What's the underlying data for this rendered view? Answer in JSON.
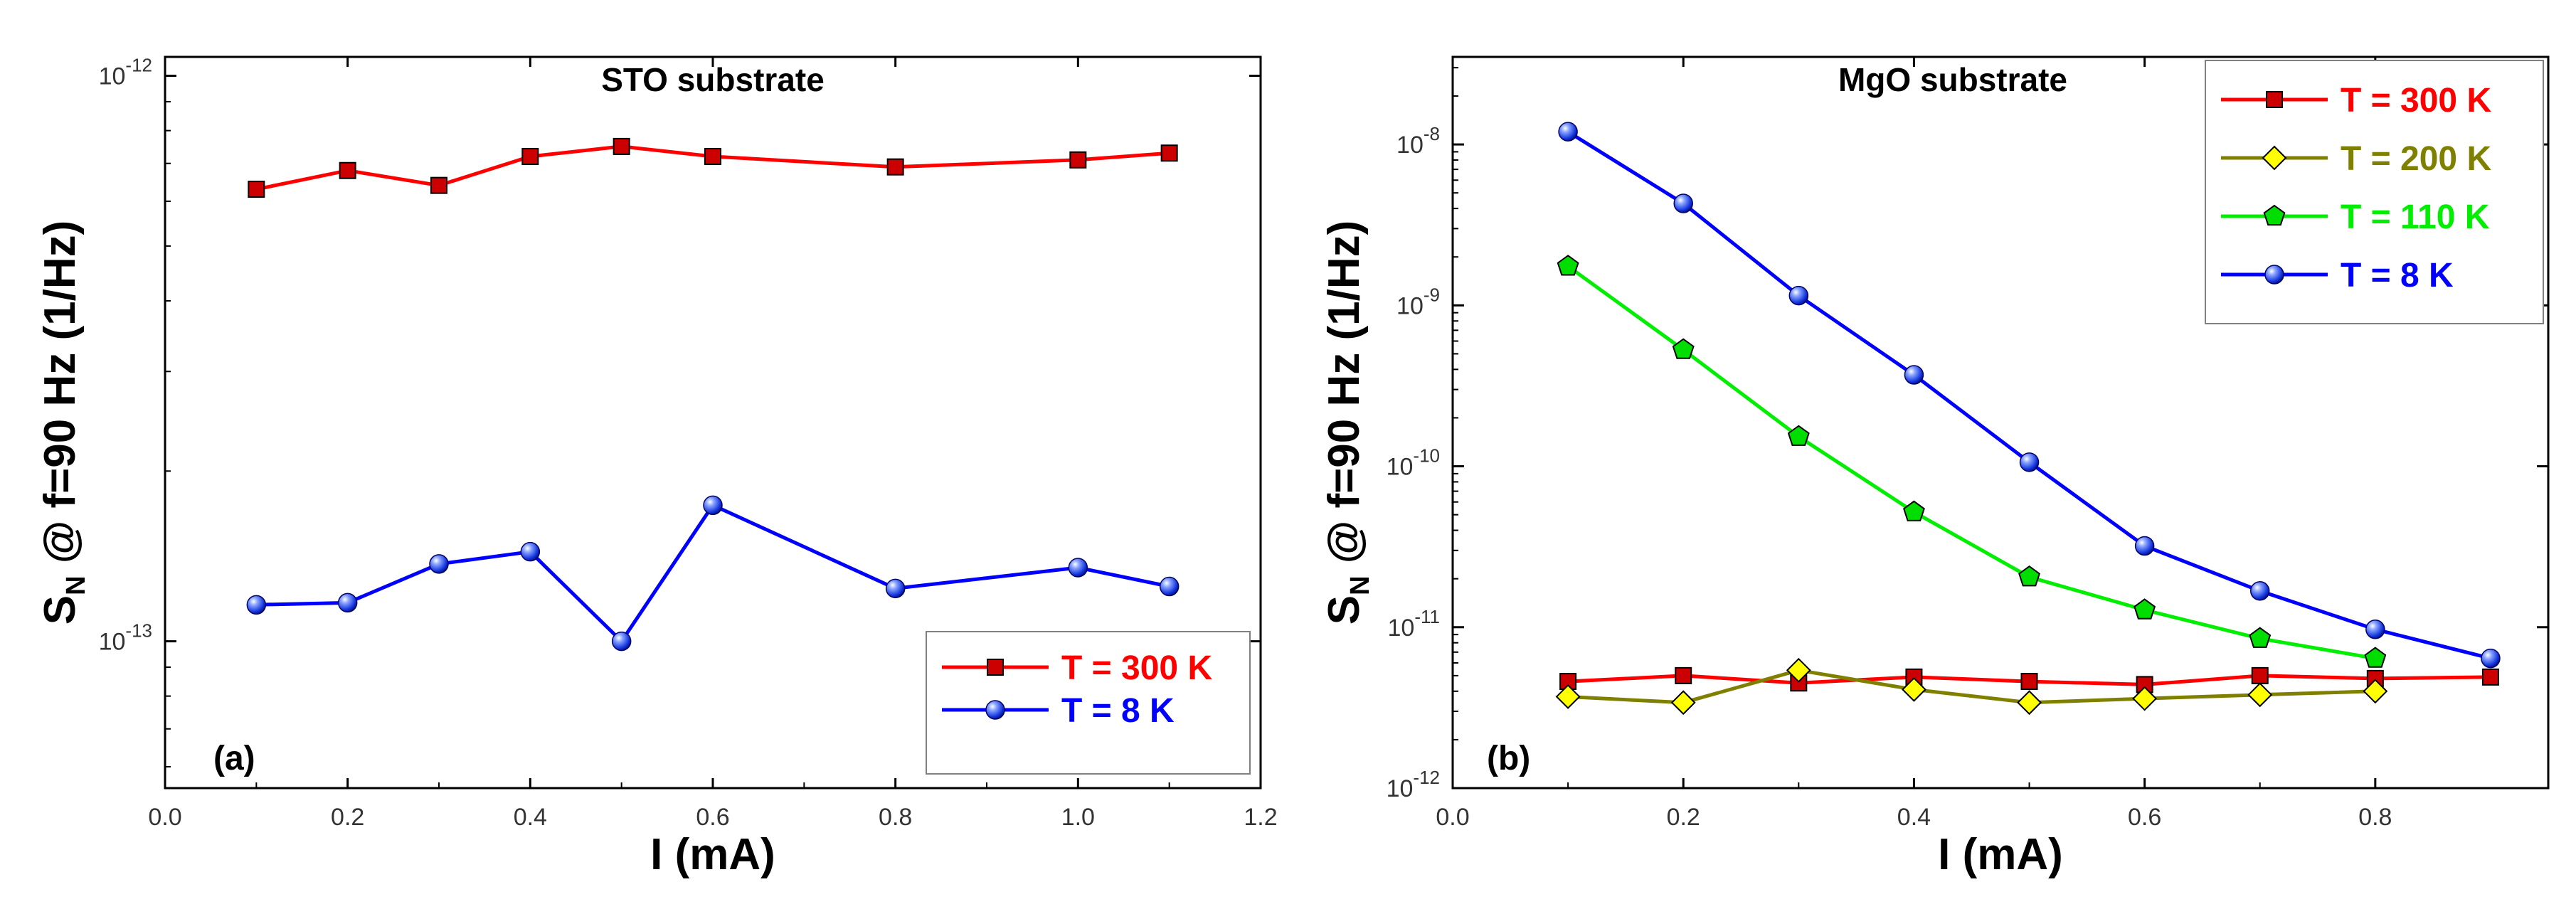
{
  "chart_data": [
    {
      "type": "line",
      "panel_label": "(a)",
      "title": "STO substrate",
      "xlabel": "I (mA)",
      "ylabel": "S_N @ f=90 Hz (1/Hz)",
      "ylabel_main": "S",
      "ylabel_sub": "N",
      "ylabel_rest": " @ f=90 Hz  (1/Hz)",
      "y_scale": "log",
      "xlim": [
        0.0,
        1.2
      ],
      "ylim": [
        5.5e-14,
        1.08e-12
      ],
      "x_ticks": [
        0.0,
        0.2,
        0.4,
        0.6,
        0.8,
        1.0,
        1.2
      ],
      "x_tick_labels": [
        "0.0",
        "0.2",
        "0.4",
        "0.6",
        "0.8",
        "1.0",
        "1.2"
      ],
      "y_ticks": [
        1e-13,
        1e-12
      ],
      "y_tick_labels": [
        {
          "base": "10",
          "exp": "-13"
        },
        {
          "base": "10",
          "exp": "-12"
        }
      ],
      "grid": false,
      "legend_position": "bottom-right",
      "series": [
        {
          "name": "T = 300 K",
          "color": "#ff0000",
          "marker": "square",
          "marker_fill": "#cc0000",
          "x": [
            0.1,
            0.2,
            0.3,
            0.4,
            0.5,
            0.6,
            0.8,
            1.0,
            1.1
          ],
          "y": [
            6.3e-13,
            6.8e-13,
            6.4e-13,
            7.2e-13,
            7.5e-13,
            7.2e-13,
            6.9e-13,
            7.1e-13,
            7.3e-13
          ]
        },
        {
          "name": "T = 8 K",
          "color": "#0000ff",
          "marker": "sphere",
          "marker_fill": "#2244ee",
          "x": [
            0.1,
            0.2,
            0.3,
            0.4,
            0.5,
            0.6,
            0.8,
            1.0,
            1.1
          ],
          "y": [
            1.16e-13,
            1.17e-13,
            1.37e-13,
            1.44e-13,
            1e-13,
            1.74e-13,
            1.24e-13,
            1.35e-13,
            1.25e-13
          ]
        }
      ]
    },
    {
      "type": "line",
      "panel_label": "(b)",
      "title": "MgO substrate",
      "xlabel": "I (mA)",
      "ylabel": "S_N @ f=90 Hz (1/Hz)",
      "ylabel_main": "S",
      "ylabel_sub": "N",
      "ylabel_rest": " @ f=90 Hz  (1/Hz)",
      "y_scale": "log",
      "xlim": [
        0.0,
        0.95
      ],
      "ylim": [
        1e-12,
        3.5e-08
      ],
      "x_ticks": [
        0.0,
        0.2,
        0.4,
        0.6,
        0.8
      ],
      "x_tick_labels": [
        "0.0",
        "0.2",
        "0.4",
        "0.6",
        "0.8"
      ],
      "y_ticks": [
        1e-12,
        1e-11,
        1e-10,
        1e-09,
        1e-08
      ],
      "y_tick_labels": [
        {
          "base": "10",
          "exp": "-12"
        },
        {
          "base": "10",
          "exp": "-11"
        },
        {
          "base": "10",
          "exp": "-10"
        },
        {
          "base": "10",
          "exp": "-9"
        },
        {
          "base": "10",
          "exp": "-8"
        }
      ],
      "grid": false,
      "legend_position": "top-right",
      "series": [
        {
          "name": "T = 300 K",
          "color": "#ff0000",
          "text_color": "#ff0000",
          "marker": "square",
          "marker_fill": "#cc0000",
          "x": [
            0.1,
            0.2,
            0.3,
            0.4,
            0.5,
            0.6,
            0.7,
            0.8,
            0.9
          ],
          "y": [
            4.6e-12,
            5e-12,
            4.5e-12,
            4.9e-12,
            4.6e-12,
            4.4e-12,
            5e-12,
            4.8e-12,
            4.9e-12
          ]
        },
        {
          "name": "T = 200 K",
          "color": "#808000",
          "text_color": "#808000",
          "marker": "diamond",
          "marker_fill": "#ffff00",
          "x": [
            0.1,
            0.2,
            0.3,
            0.4,
            0.5,
            0.6,
            0.7,
            0.8
          ],
          "y": [
            3.7e-12,
            3.4e-12,
            5.4e-12,
            4.1e-12,
            3.4e-12,
            3.6e-12,
            3.8e-12,
            4e-12
          ]
        },
        {
          "name": "T = 110 K",
          "color": "#00ee00",
          "text_color": "#00ee00",
          "marker": "pentagon",
          "marker_fill": "#00dd00",
          "x": [
            0.1,
            0.2,
            0.3,
            0.4,
            0.5,
            0.6,
            0.7,
            0.8
          ],
          "y": [
            1.75e-09,
            5.3e-10,
            1.53e-10,
            5.2e-11,
            2.05e-11,
            1.28e-11,
            8.5e-12,
            6.4e-12
          ]
        },
        {
          "name": "T = 8 K",
          "color": "#0000ff",
          "text_color": "#0000ff",
          "marker": "sphere",
          "marker_fill": "#2244ee",
          "x": [
            0.1,
            0.2,
            0.3,
            0.4,
            0.5,
            0.6,
            0.7,
            0.8,
            0.9
          ],
          "y": [
            1.2e-08,
            4.3e-09,
            1.15e-09,
            3.7e-10,
            1.06e-10,
            3.2e-11,
            1.68e-11,
            9.7e-12,
            6.4e-12
          ]
        }
      ]
    }
  ]
}
